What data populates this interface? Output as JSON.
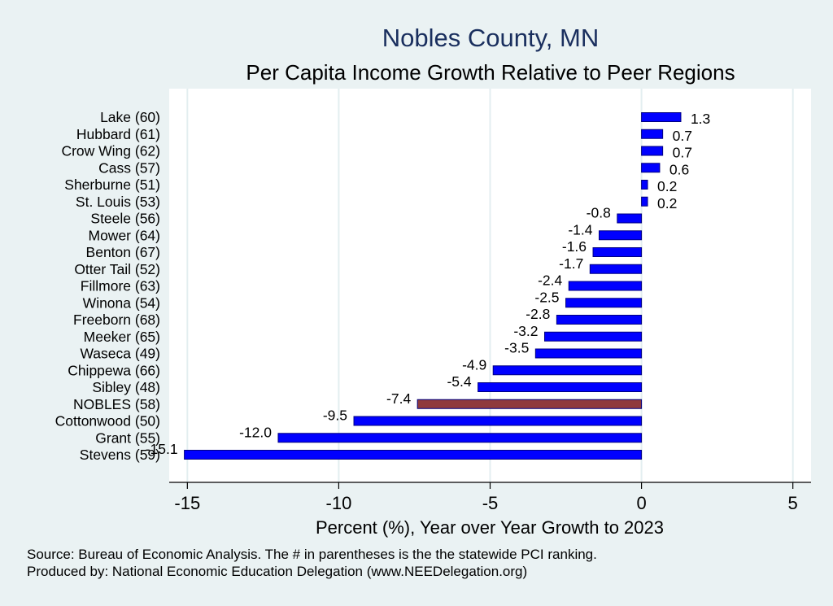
{
  "chart_data": {
    "type": "bar",
    "orientation": "horizontal",
    "title": "Nobles County, MN",
    "subtitle": "Per Capita Income Growth Relative to Peer Regions",
    "xlabel": "Percent (%), Year over Year Growth to 2023",
    "xlim": [
      -15.6,
      5.6
    ],
    "xticks": [
      -15,
      -10,
      -5,
      0,
      5
    ],
    "xtick_labels": [
      "-15",
      "-10",
      "-5",
      "0",
      "5"
    ],
    "grid": "vertical",
    "categories": [
      "Lake (60)",
      "Hubbard (61)",
      "Crow Wing (62)",
      "Cass (57)",
      "Sherburne (51)",
      "St. Louis (53)",
      "Steele (56)",
      "Mower (64)",
      "Benton (67)",
      "Otter Tail (52)",
      "Fillmore (63)",
      "Winona (54)",
      "Freeborn (68)",
      "Meeker (65)",
      "Waseca (49)",
      "Chippewa (66)",
      "Sibley (48)",
      "NOBLES (58)",
      "Cottonwood (50)",
      "Grant (55)",
      "Stevens (59)"
    ],
    "values": [
      1.3,
      0.7,
      0.7,
      0.6,
      0.2,
      0.2,
      -0.8,
      -1.4,
      -1.6,
      -1.7,
      -2.4,
      -2.5,
      -2.8,
      -3.2,
      -3.5,
      -4.9,
      -5.4,
      -7.4,
      -9.5,
      -12.0,
      -15.1
    ],
    "value_labels": [
      "1.3",
      "0.7",
      "0.7",
      "0.6",
      "0.2",
      "0.2",
      "-0.8",
      "-1.4",
      "-1.6",
      "-1.7",
      "-2.4",
      "-2.5",
      "-2.8",
      "-3.2",
      "-3.5",
      "-4.9",
      "-5.4",
      "-7.4",
      "-9.5",
      "-12.0",
      "-15.1"
    ],
    "highlight_index": 17,
    "colors": {
      "default_bar": "#0000ff",
      "highlight_bar": "#8f3a3d",
      "bar_outline": "#000080",
      "plot_background": "#ffffff",
      "page_background": "#eaf2f3",
      "grid": "#e3eef0",
      "title": "#1a2f5e"
    }
  },
  "footer": {
    "source": "Source: Bureau of Economic Analysis. The # in parentheses is the the statewide PCI ranking.",
    "producer": "Produced by: National Economic Education Delegation (www.NEEDelegation.org)"
  }
}
